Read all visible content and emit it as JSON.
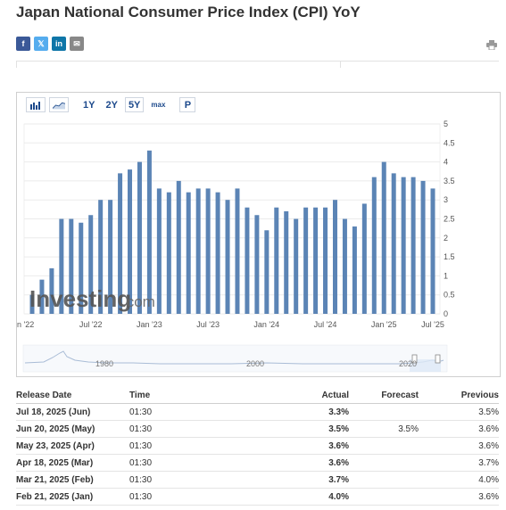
{
  "page": {
    "title": "Japan National Consumer Price Index (CPI) YoY",
    "share": [
      "f",
      "𝕏",
      "in",
      "✉"
    ],
    "print_icon": "printer-icon"
  },
  "toolbar": {
    "ranges": [
      "1Y",
      "2Y",
      "5Y",
      "max"
    ],
    "selected": "5Y",
    "p_label": "P"
  },
  "chart_data": {
    "type": "bar",
    "x_tick_labels": [
      "n '22",
      "Jul '22",
      "Jan '23",
      "Jul '23",
      "Jan '24",
      "Jul '24",
      "Jan '25",
      "Jul '25"
    ],
    "y_tick_labels": [
      "0",
      "0.5",
      "1",
      "1.5",
      "2",
      "2.5",
      "3",
      "3.5",
      "4",
      "4.5",
      "5"
    ],
    "ylim": [
      0,
      5
    ],
    "grid": true,
    "y_axis_side": "right",
    "categories": [
      "Jan 2022",
      "Feb 2022",
      "Mar 2022",
      "Apr 2022",
      "May 2022",
      "Jun 2022",
      "Jul 2022",
      "Aug 2022",
      "Sep 2022",
      "Oct 2022",
      "Nov 2022",
      "Dec 2022",
      "Jan 2023",
      "Feb 2023",
      "Mar 2023",
      "Apr 2023",
      "May 2023",
      "Jun 2023",
      "Jul 2023",
      "Aug 2023",
      "Sep 2023",
      "Oct 2023",
      "Nov 2023",
      "Dec 2023",
      "Jan 2024",
      "Feb 2024",
      "Mar 2024",
      "Apr 2024",
      "May 2024",
      "Jun 2024",
      "Jul 2024",
      "Aug 2024",
      "Sep 2024",
      "Oct 2024",
      "Nov 2024",
      "Dec 2024",
      "Jan 2025",
      "Feb 2025",
      "Mar 2025",
      "Apr 2025",
      "May 2025",
      "Jun 2025"
    ],
    "values": [
      0.5,
      0.9,
      1.2,
      2.5,
      2.5,
      2.4,
      2.6,
      3.0,
      3.0,
      3.7,
      3.8,
      4.0,
      4.3,
      3.3,
      3.2,
      3.5,
      3.2,
      3.3,
      3.3,
      3.2,
      3.0,
      3.3,
      2.8,
      2.6,
      2.2,
      2.8,
      2.7,
      2.5,
      2.8,
      2.8,
      2.8,
      3.0,
      2.5,
      2.3,
      2.9,
      3.6,
      4.0,
      3.7,
      3.6,
      3.6,
      3.5,
      3.3
    ],
    "navigator_labels": [
      "1980",
      "2000",
      "2020"
    ],
    "watermark": "Investing.com"
  },
  "table": {
    "headers": [
      "Release Date",
      "Time",
      "Actual",
      "Forecast",
      "Previous"
    ],
    "rows": [
      {
        "date": "Jul 18, 2025 (Jun)",
        "time": "01:30",
        "actual": "3.3%",
        "forecast": "",
        "previous": "3.5%"
      },
      {
        "date": "Jun 20, 2025 (May)",
        "time": "01:30",
        "actual": "3.5%",
        "forecast": "3.5%",
        "previous": "3.6%"
      },
      {
        "date": "May 23, 2025 (Apr)",
        "time": "01:30",
        "actual": "3.6%",
        "forecast": "",
        "previous": "3.6%"
      },
      {
        "date": "Apr 18, 2025 (Mar)",
        "time": "01:30",
        "actual": "3.6%",
        "forecast": "",
        "previous": "3.7%"
      },
      {
        "date": "Mar 21, 2025 (Feb)",
        "time": "01:30",
        "actual": "3.7%",
        "forecast": "",
        "previous": "4.0%"
      },
      {
        "date": "Feb 21, 2025 (Jan)",
        "time": "01:30",
        "actual": "4.0%",
        "forecast": "",
        "previous": "3.6%"
      }
    ]
  }
}
